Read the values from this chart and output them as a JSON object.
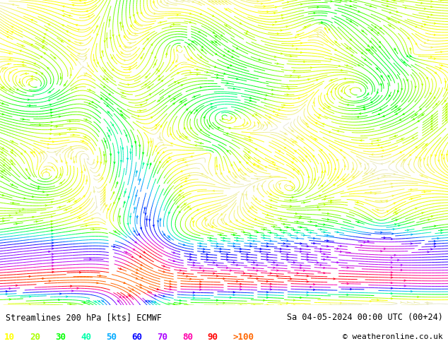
{
  "title_left": "Streamlines 200 hPa [kts] ECMWF",
  "title_right": "Sa 04-05-2024 00:00 UTC (00+24)",
  "copyright": "© weatheronline.co.uk",
  "legend_values": [
    "10",
    "20",
    "30",
    "40",
    "50",
    "60",
    "70",
    "80",
    "90",
    ">100"
  ],
  "legend_colors": [
    "#ffff00",
    "#aaff00",
    "#00ff00",
    "#00ffaa",
    "#00aaff",
    "#0000ff",
    "#aa00ff",
    "#ff00aa",
    "#ff0000",
    "#ff6600"
  ],
  "background_color": "#ffffff",
  "fig_width": 6.34,
  "fig_height": 4.9
}
